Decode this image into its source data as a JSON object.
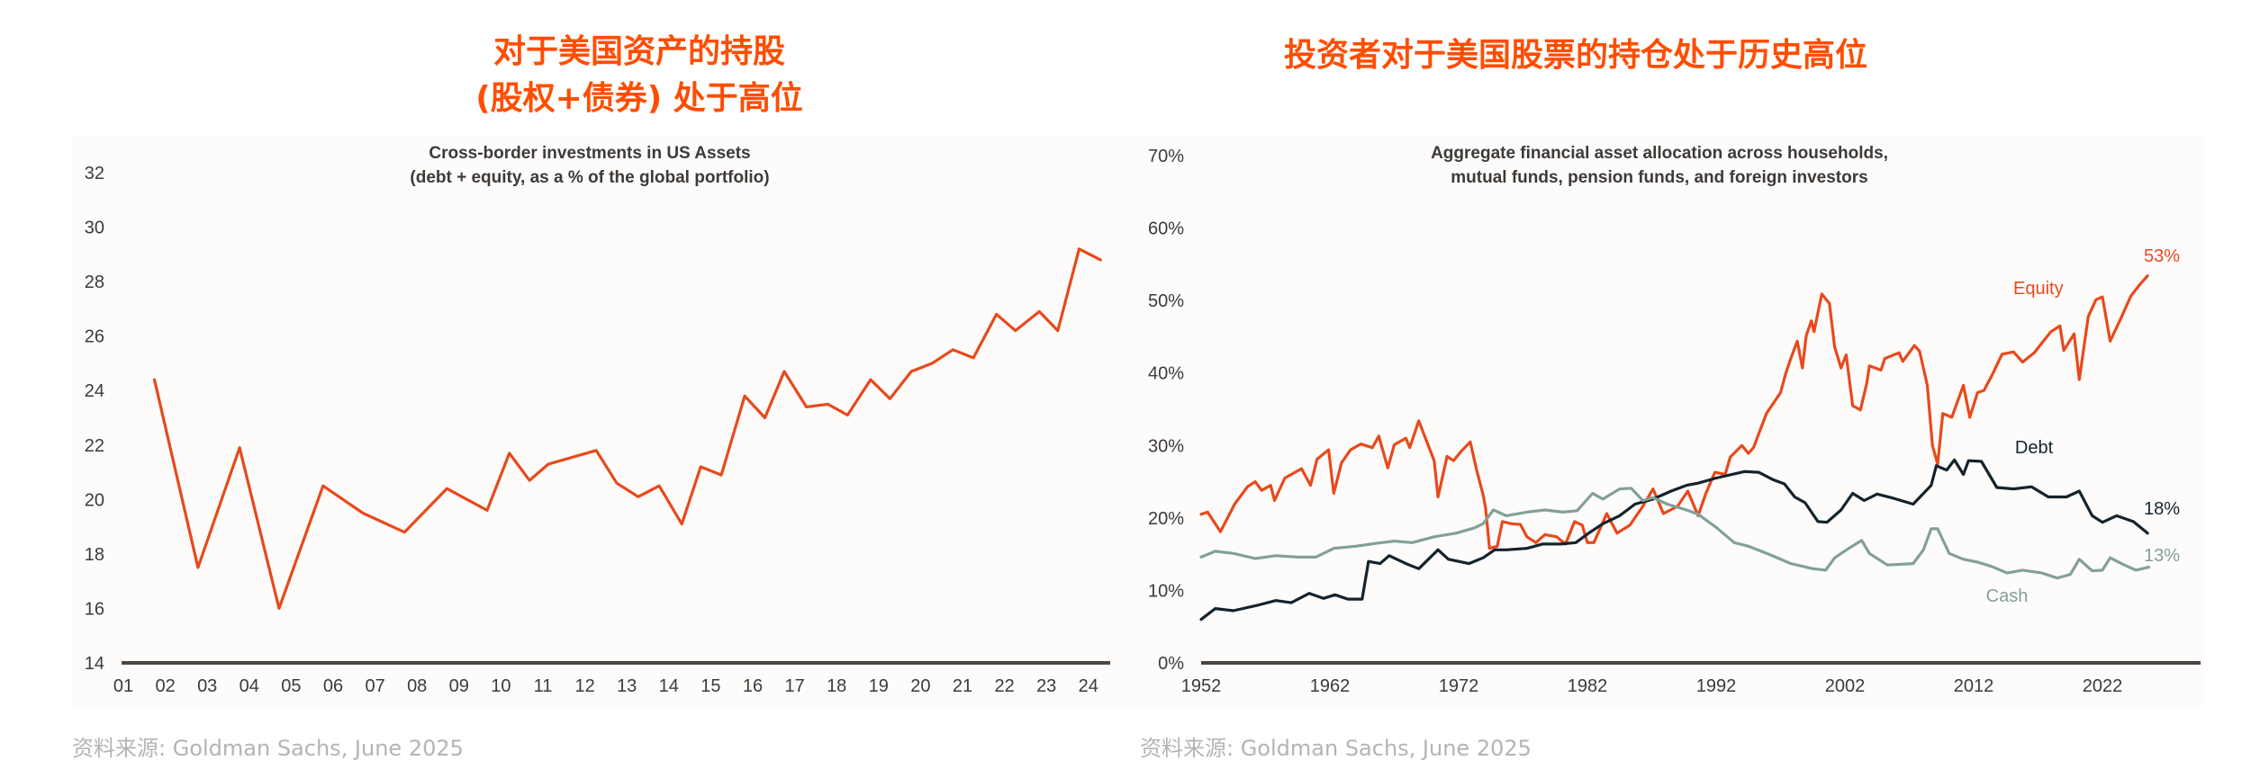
{
  "titles": {
    "left_line1": "对于美国资产的持股",
    "left_line2": "(股权+债券) 处于高位",
    "right": "投资者对于美国股票的持仓处于历史高位"
  },
  "sources": {
    "left": "资料来源: Goldman Sachs, June 2025",
    "right": "资料来源: Goldman Sachs, June 2025"
  },
  "colors": {
    "headline": "#ff4d00",
    "equity": "#e8491c",
    "debt": "#14232b",
    "cash": "#82a099",
    "axis": "#4a4542",
    "text": "#3d3a38"
  },
  "chart_data": [
    {
      "type": "line",
      "title": "Cross-border investments in US Assets",
      "subtitle": "(debt + equity, as a % of the global portfolio)",
      "xlabel": "",
      "ylabel": "",
      "xticks": [
        "01",
        "02",
        "03",
        "04",
        "05",
        "06",
        "07",
        "08",
        "09",
        "10",
        "11",
        "12",
        "13",
        "14",
        "15",
        "16",
        "17",
        "18",
        "19",
        "20",
        "21",
        "22",
        "23",
        "24"
      ],
      "yticks": [
        14,
        16,
        18,
        20,
        22,
        24,
        26,
        28,
        30,
        32
      ],
      "ylim": [
        14,
        32
      ],
      "xlim": [
        1,
        24.6
      ],
      "grid": false,
      "legend": "none",
      "series": [
        {
          "name": "Cross-border investments in US assets (%)",
          "color": "#e8491c",
          "x": [
            1.74,
            2.78,
            3.77,
            4.71,
            5.76,
            6.71,
            7.7,
            8.71,
            9.67,
            10.2,
            10.68,
            11.13,
            12.27,
            12.76,
            13.27,
            13.77,
            14.31,
            14.76,
            15.25,
            15.81,
            16.29,
            16.75,
            17.28,
            17.79,
            18.26,
            18.81,
            19.27,
            19.78,
            20.28,
            20.77,
            21.26,
            21.81,
            22.26,
            22.83,
            23.27,
            23.78,
            24.29
          ],
          "y": [
            24.4,
            17.5,
            21.9,
            16.0,
            20.5,
            19.5,
            18.8,
            20.4,
            19.6,
            21.7,
            20.7,
            21.3,
            21.8,
            20.6,
            20.1,
            20.5,
            19.1,
            21.2,
            20.9,
            23.8,
            23.0,
            24.7,
            23.4,
            23.5,
            23.1,
            24.4,
            23.7,
            24.7,
            25.0,
            25.5,
            25.2,
            26.8,
            26.2,
            26.9,
            26.2,
            29.2,
            28.8
          ]
        }
      ]
    },
    {
      "type": "line",
      "title": "Aggregate financial asset allocation across households,",
      "subtitle": "mutual funds, pension funds, and foreign investors",
      "xlabel": "",
      "ylabel": "",
      "xticks": [
        1952,
        1962,
        1972,
        1982,
        1992,
        2002,
        2012,
        2022
      ],
      "yticks": [
        "0%",
        "10%",
        "20%",
        "30%",
        "40%",
        "50%",
        "60%",
        "70%"
      ],
      "ylim": [
        0,
        70
      ],
      "xlim": [
        1952,
        2030
      ],
      "grid": false,
      "legend": "inline labels",
      "series": [
        {
          "name": "Equity",
          "color": "#e8491c",
          "end_label": "53%",
          "x": [
            1952,
            1952.5,
            1953.5,
            1954.6,
            1955.6,
            1956.2,
            1956.7,
            1957.4,
            1957.7,
            1958.5,
            1959.8,
            1960.5,
            1961,
            1961.9,
            1962.3,
            1962.9,
            1963.6,
            1964.4,
            1965.3,
            1965.8,
            1966.5,
            1967,
            1967.9,
            1968.2,
            1968.9,
            1970.1,
            1970.4,
            1971.1,
            1971.6,
            1972.2,
            1972.9,
            1973.4,
            1973.9,
            1974.1,
            1974.4,
            1975,
            1975.4,
            1976.1,
            1976.8,
            1977.3,
            1978,
            1978.7,
            1979.6,
            1980.3,
            1981,
            1981.6,
            1982,
            1982.5,
            1983.5,
            1984.3,
            1985.3,
            1986.3,
            1987.1,
            1987.9,
            1989,
            1989.8,
            1990.6,
            1991.2,
            1991.9,
            1992.7,
            1993.1,
            1994,
            1994.5,
            1994.9,
            1995.9,
            1997,
            1997.4,
            1997.8,
            1998.3,
            1998.7,
            1999,
            1999.4,
            1999.6,
            2000.2,
            2000.8,
            2001.2,
            2001.7,
            2002.1,
            2002.6,
            2003.2,
            2003.7,
            2003.9,
            2004.8,
            2005.1,
            2006.2,
            2006.5,
            2007.4,
            2007.8,
            2008.4,
            2008.8,
            2009.2,
            2009.6,
            2010.3,
            2011.2,
            2011.7,
            2012.3,
            2012.8,
            2013.4,
            2014.2,
            2015.1,
            2015.8,
            2016.7,
            2018,
            2018.7,
            2019,
            2019.8,
            2020.2,
            2020.9,
            2021.5,
            2022,
            2022.6,
            2023.5,
            2024.2,
            2024.9,
            2025.5
          ],
          "y": [
            20.5,
            20.8,
            18.1,
            21.9,
            24.3,
            25.0,
            23.8,
            24.5,
            22.4,
            25.5,
            26.8,
            24.5,
            28.1,
            29.4,
            23.4,
            27.6,
            29.4,
            30.2,
            29.7,
            31.3,
            26.9,
            30.1,
            31.0,
            29.7,
            33.4,
            27.9,
            22.9,
            28.5,
            27.9,
            29.2,
            30.5,
            26.6,
            23.2,
            21.3,
            15.8,
            16.1,
            19.5,
            19.2,
            19.1,
            17.4,
            16.6,
            17.7,
            17.4,
            16.4,
            19.5,
            19.0,
            16.6,
            16.6,
            20.6,
            17.9,
            19.0,
            21.6,
            24.0,
            20.6,
            21.6,
            23.7,
            20.3,
            23.4,
            26.3,
            26.0,
            28.4,
            30.0,
            28.9,
            29.7,
            34.4,
            37.3,
            39.9,
            42.0,
            44.4,
            40.7,
            45.2,
            47.2,
            45.7,
            50.9,
            49.6,
            43.6,
            40.7,
            42.5,
            35.5,
            34.9,
            38.6,
            41.0,
            40.4,
            42.0,
            42.8,
            41.6,
            43.8,
            43.0,
            38.3,
            30.0,
            27.4,
            34.4,
            33.9,
            38.3,
            33.9,
            37.3,
            37.6,
            39.6,
            42.6,
            42.9,
            41.5,
            42.8,
            45.7,
            46.5,
            43.1,
            45.4,
            39.1,
            47.8,
            50.1,
            50.5,
            44.4,
            47.8,
            50.6,
            52.2,
            53.4
          ]
        },
        {
          "name": "Debt",
          "color": "#14232b",
          "end_label": "18%",
          "x": [
            1952,
            1953.1,
            1954.5,
            1956.5,
            1957.8,
            1959,
            1960.4,
            1961.5,
            1962.4,
            1963.4,
            1964.5,
            1965,
            1965.9,
            1966.6,
            1967.9,
            1968.9,
            1970.4,
            1971.2,
            1972.8,
            1973.9,
            1974.8,
            1975.7,
            1977.3,
            1978.5,
            1979.9,
            1981.1,
            1982.1,
            1983.2,
            1984.5,
            1985.7,
            1987.1,
            1988.5,
            1989.7,
            1990.6,
            1992,
            1994.2,
            1995.3,
            1996.4,
            1997.3,
            1998.1,
            1998.9,
            1999.9,
            2000.6,
            2001.7,
            2002.6,
            2003.5,
            2004.5,
            2005.8,
            2007.3,
            2008.7,
            2009.1,
            2009.9,
            2010.5,
            2011.2,
            2011.6,
            2012.6,
            2013.8,
            2015.1,
            2016.5,
            2017.8,
            2019.2,
            2020.2,
            2021.2,
            2022,
            2023.1,
            2024.4,
            2025.5
          ],
          "y": [
            6.0,
            7.5,
            7.2,
            8.0,
            8.6,
            8.3,
            9.6,
            8.9,
            9.4,
            8.8,
            8.8,
            14.0,
            13.7,
            14.8,
            13.7,
            13.0,
            15.6,
            14.3,
            13.7,
            14.5,
            15.6,
            15.6,
            15.8,
            16.4,
            16.4,
            16.6,
            17.9,
            19.2,
            20.3,
            21.9,
            22.6,
            23.7,
            24.5,
            24.8,
            25.5,
            26.4,
            26.3,
            25.3,
            24.7,
            22.9,
            22.1,
            19.5,
            19.4,
            21.1,
            23.4,
            22.4,
            23.3,
            22.7,
            21.9,
            24.5,
            27.2,
            26.6,
            28.0,
            26.0,
            27.9,
            27.8,
            24.2,
            24.0,
            24.3,
            22.9,
            22.9,
            23.7,
            20.3,
            19.4,
            20.3,
            19.5,
            17.9
          ]
        },
        {
          "name": "Cash",
          "color": "#82a099",
          "end_label": "13%",
          "x": [
            1952,
            1953.1,
            1954.5,
            1956.2,
            1957.8,
            1959.5,
            1960.9,
            1962.3,
            1964,
            1965.6,
            1967,
            1968.4,
            1970.1,
            1971.8,
            1973.2,
            1973.9,
            1974.7,
            1975.7,
            1977.3,
            1978.7,
            1980.1,
            1981.2,
            1982.4,
            1983.2,
            1984.5,
            1985.4,
            1986.3,
            1987.1,
            1988.2,
            1989.7,
            1990.6,
            1992,
            1993.4,
            1994.5,
            1996.2,
            1997.8,
            1999.5,
            2000.5,
            2001.2,
            2002.3,
            2003.3,
            2003.9,
            2005.3,
            2007.3,
            2008.1,
            2008.7,
            2009.2,
            2010.1,
            2011.2,
            2012.3,
            2013.4,
            2014.6,
            2015.8,
            2017.3,
            2018.5,
            2019.5,
            2020.2,
            2021.2,
            2022,
            2022.6,
            2023.7,
            2024.6,
            2025.6
          ],
          "y": [
            14.6,
            15.4,
            15.1,
            14.4,
            14.8,
            14.6,
            14.6,
            15.8,
            16.1,
            16.5,
            16.8,
            16.6,
            17.4,
            17.9,
            18.6,
            19.2,
            21.1,
            20.3,
            20.8,
            21.1,
            20.8,
            21.0,
            23.4,
            22.6,
            24.0,
            24.1,
            22.4,
            22.8,
            21.9,
            21.1,
            20.5,
            18.7,
            16.6,
            16.1,
            14.9,
            13.7,
            13.0,
            12.8,
            14.5,
            15.8,
            16.9,
            15.1,
            13.5,
            13.7,
            15.6,
            18.5,
            18.5,
            15.1,
            14.3,
            13.9,
            13.3,
            12.4,
            12.8,
            12.4,
            11.7,
            12.2,
            14.3,
            12.7,
            12.8,
            14.5,
            13.5,
            12.8,
            13.2
          ]
        }
      ]
    }
  ]
}
